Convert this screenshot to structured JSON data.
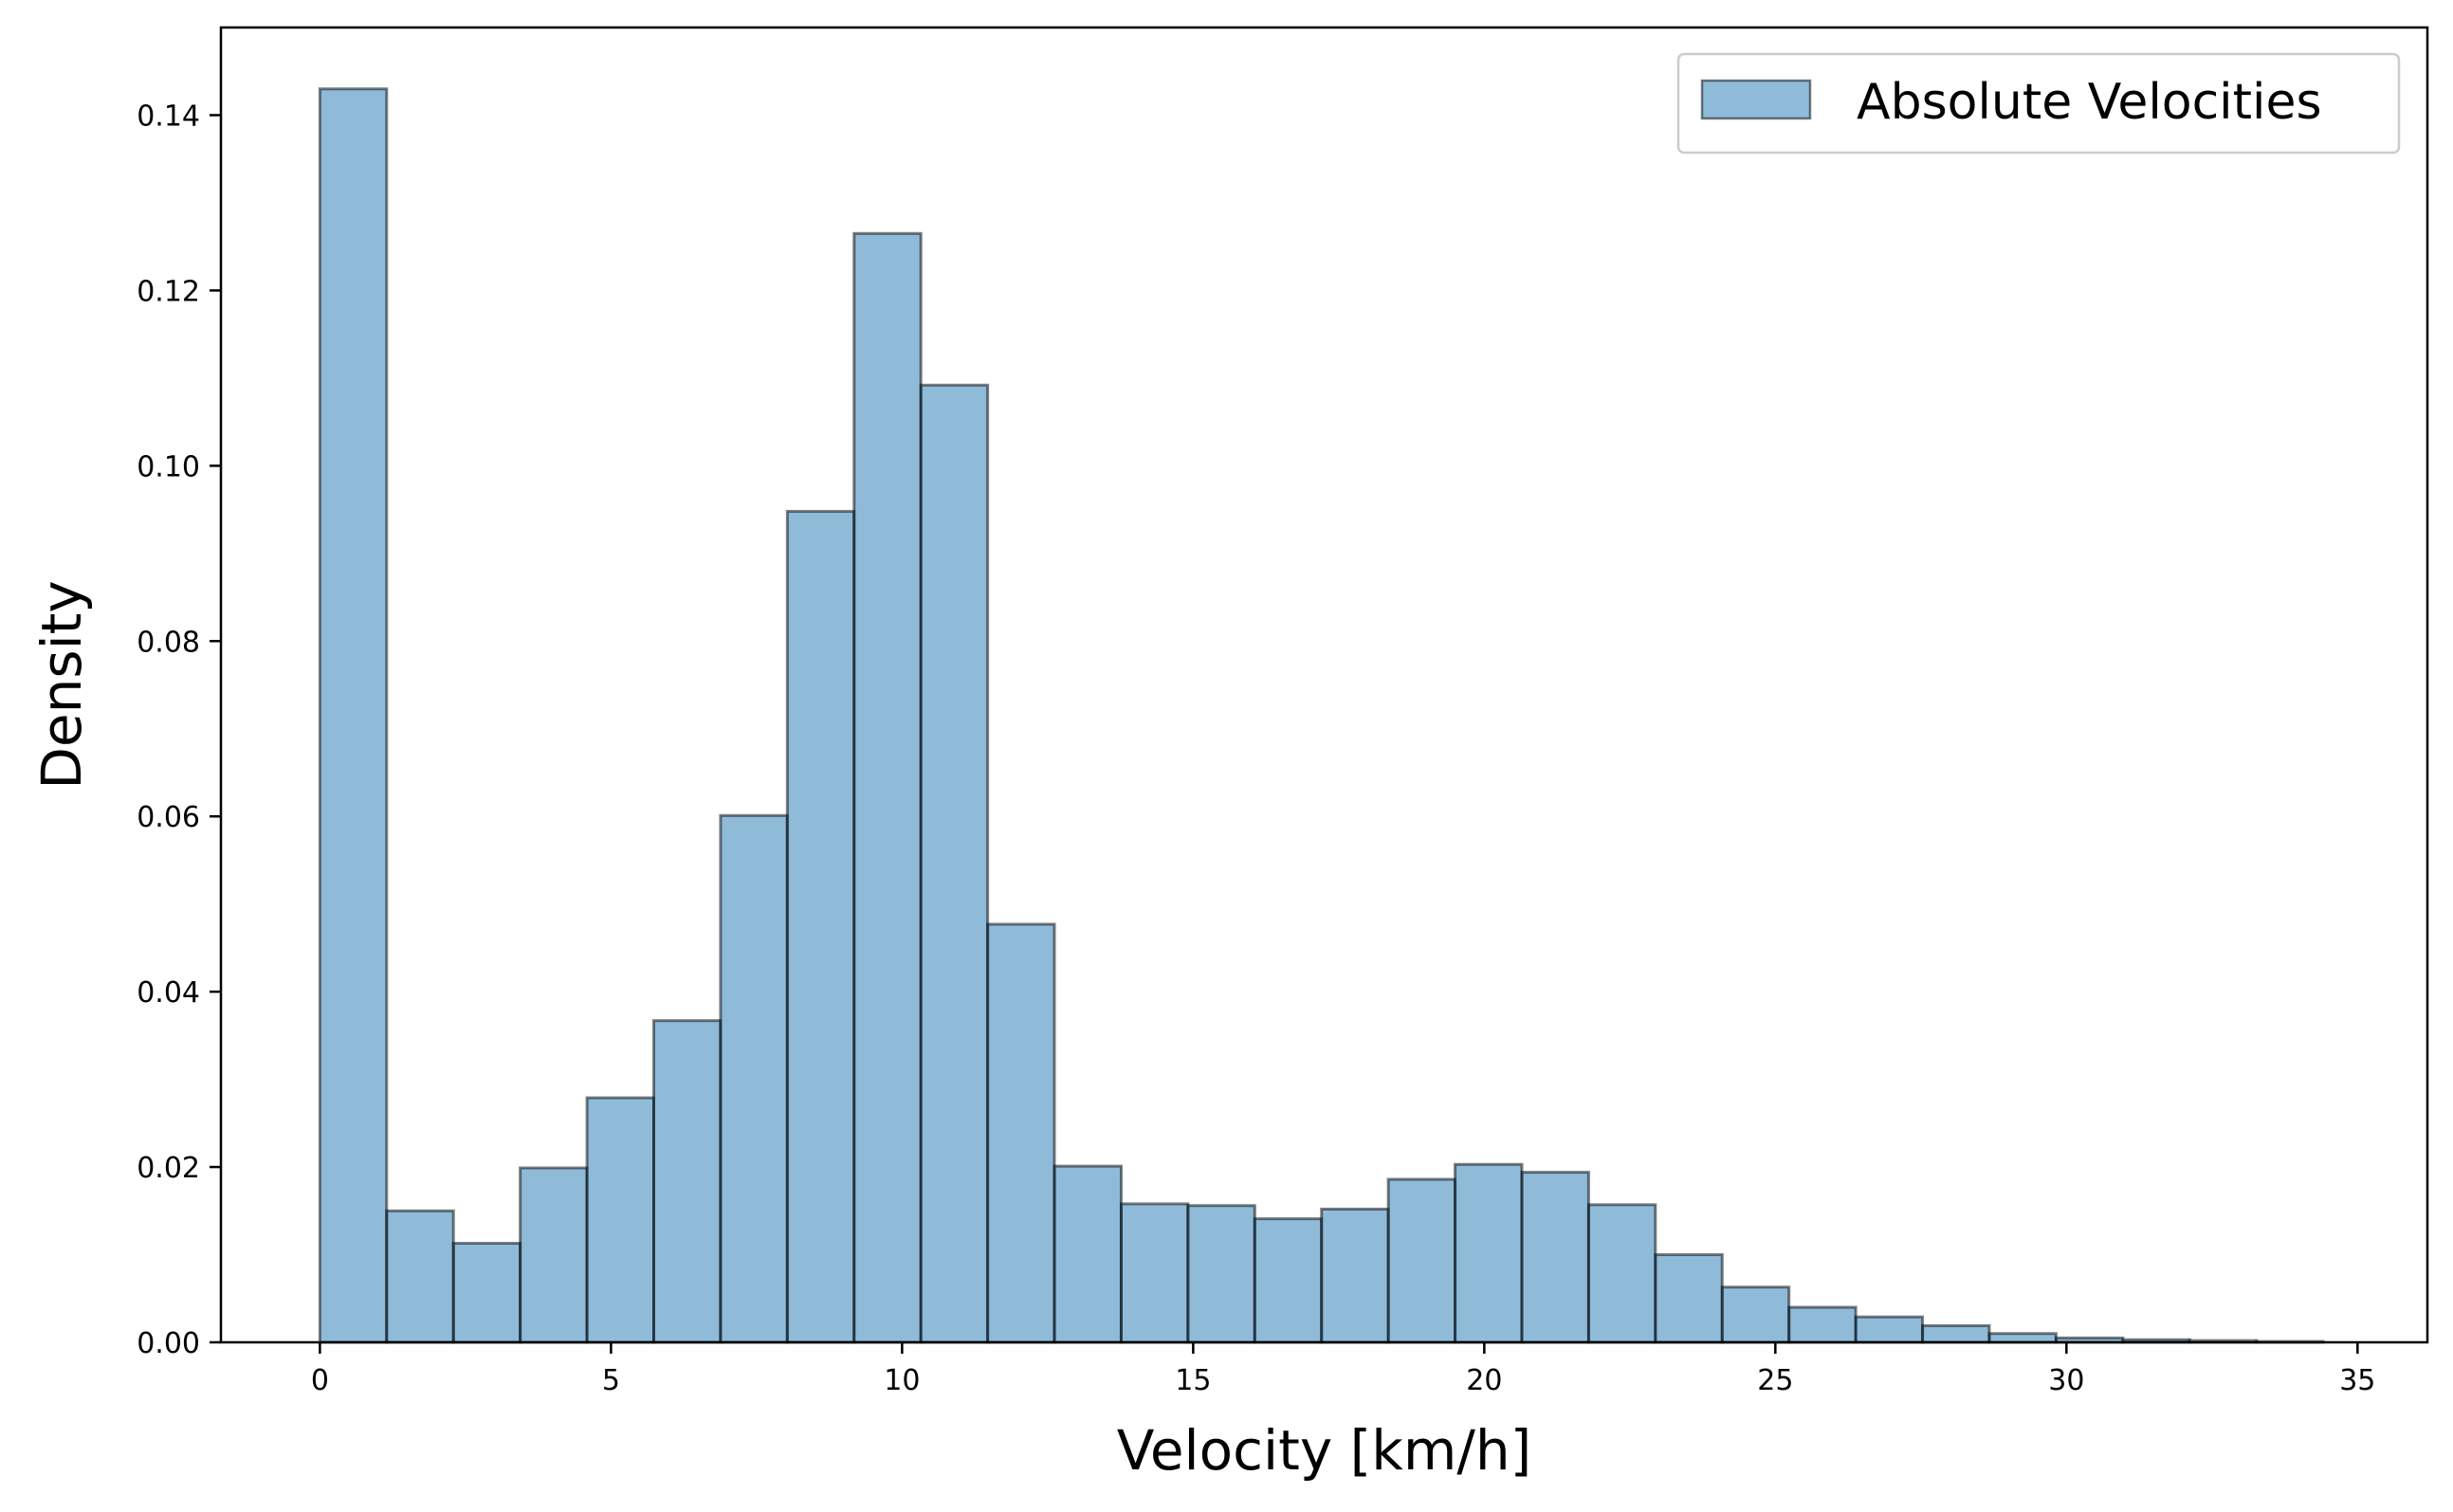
{
  "chart_data": {
    "type": "bar",
    "title": "",
    "xlabel": "Velocity [km/h]",
    "ylabel": "Density",
    "xlim": [
      -1.7,
      36.2
    ],
    "ylim": [
      0,
      0.15
    ],
    "xticks": [
      0,
      5,
      10,
      15,
      20,
      25,
      30,
      35
    ],
    "xtick_labels": [
      "0",
      "5",
      "10",
      "15",
      "20",
      "25",
      "30",
      "35"
    ],
    "yticks": [
      0,
      0.02,
      0.04,
      0.06,
      0.08,
      0.1,
      0.12,
      0.14
    ],
    "ytick_labels": [
      "0.00",
      "0.02",
      "0.04",
      "0.06",
      "0.08",
      "0.10",
      "0.12",
      "0.14"
    ],
    "grid": false,
    "legend_position": "top-right",
    "colors": {
      "bar_fill": "#1f77b4",
      "bar_fill_opacity": 0.5,
      "bar_edge": "#000000",
      "axes": "#000000"
    },
    "series": [
      {
        "name": "Absolute Velocities",
        "bin_edges": [
          0.0,
          1.147,
          2.294,
          3.441,
          4.588,
          5.735,
          6.882,
          8.029,
          9.176,
          10.323,
          11.47,
          12.617,
          13.764,
          14.911,
          16.058,
          17.205,
          18.352,
          19.499,
          20.646,
          21.793,
          22.94,
          24.087,
          25.234,
          26.381,
          27.528,
          28.675,
          29.822,
          30.969,
          32.116,
          33.263,
          34.41
        ],
        "values": [
          0.143,
          0.015,
          0.0113,
          0.0199,
          0.0279,
          0.0367,
          0.0601,
          0.0948,
          0.1265,
          0.1092,
          0.0477,
          0.0201,
          0.0158,
          0.0156,
          0.0141,
          0.0152,
          0.0186,
          0.0203,
          0.0194,
          0.0157,
          0.01,
          0.0063,
          0.004,
          0.0029,
          0.0019,
          0.001,
          0.0005,
          0.0003,
          0.0002,
          0.0001
        ]
      }
    ]
  }
}
